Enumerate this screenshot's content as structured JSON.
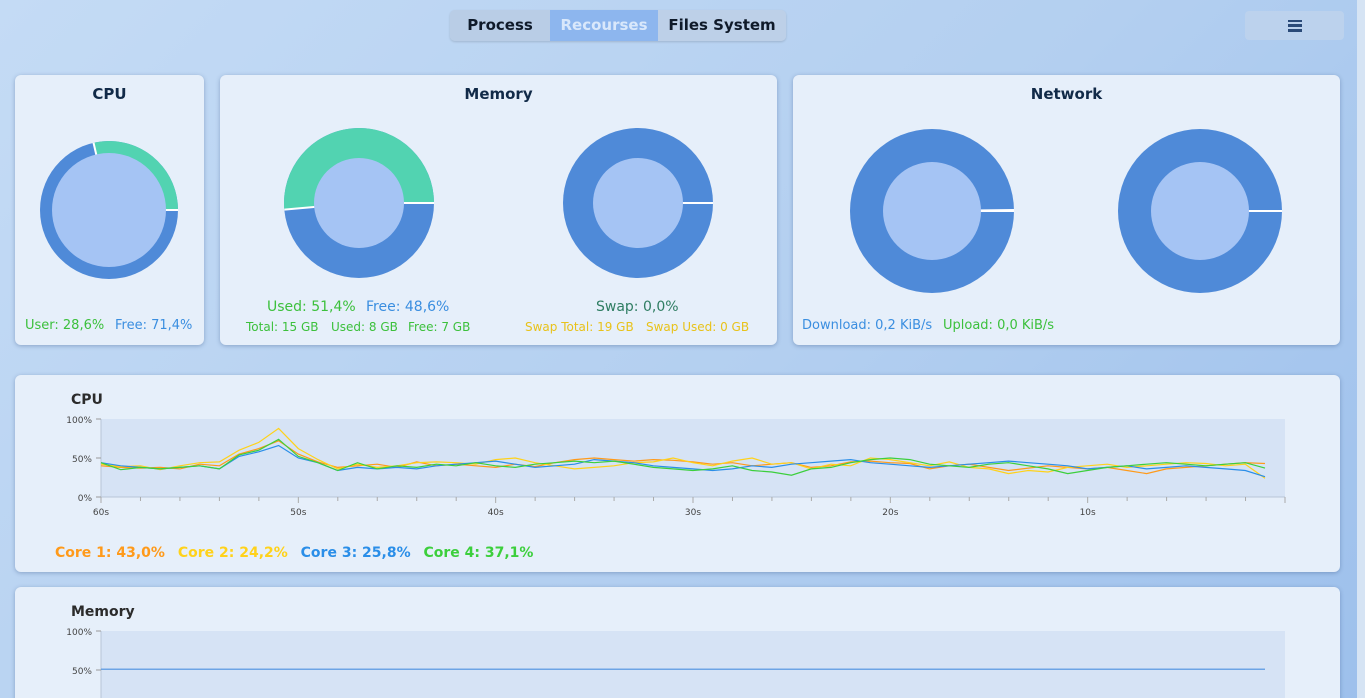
{
  "tabs": [
    {
      "label": "Process"
    },
    {
      "label": "Recourses"
    },
    {
      "label": "Files System"
    }
  ],
  "menu_icon": "hamburger-menu-icon",
  "colors": {
    "ring_dark": "#4f8ad8",
    "ring_teal": "#52d3b1",
    "inner": "#a5c4f4",
    "core1": "#ff9a1a",
    "core2": "#ffd21a",
    "core3": "#2a8ee8",
    "core4": "#3ccf3c",
    "memline": "#4a90e0"
  },
  "cpu_card": {
    "title": "CPU",
    "user": "User: 28,6%",
    "free": "Free: 71,4%",
    "used_fraction": 0.286
  },
  "memory_card": {
    "title": "Memory",
    "used": "Used: 51,4%",
    "free": "Free: 48,6%",
    "total": "Total: 15 GB",
    "used_gb": "Used: 8 GB",
    "free_gb": "Free: 7 GB",
    "used_fraction": 0.514,
    "swap": "Swap: 0,0%",
    "swap_total": "Swap Total: 19 GB",
    "swap_used": "Swap Used: 0 GB",
    "swap_fraction": 0.0
  },
  "network_card": {
    "title": "Network",
    "download": "Download: 0,2 KiB/s",
    "upload": "Upload: 0,0 KiB/s",
    "download_fraction": 0.002,
    "upload_fraction": 0.0
  },
  "cpu_chart": {
    "title": "CPU",
    "y_ticks": [
      "100%",
      "50%",
      "0%"
    ],
    "x_ticks": [
      "60s",
      "50s",
      "40s",
      "30s",
      "20s",
      "10s"
    ],
    "legend": {
      "core1": "Core 1: 43,0%",
      "core2": "Core 2: 24,2%",
      "core3": "Core 3: 25,8%",
      "core4": "Core 4: 37,1%"
    }
  },
  "memory_chart": {
    "title": "Memory",
    "y_ticks": [
      "100%",
      "50%"
    ]
  },
  "chart_data": [
    {
      "type": "line",
      "title": "CPU",
      "ylim": [
        0,
        100
      ],
      "x": [
        60,
        59,
        58,
        57,
        56,
        55,
        54,
        53,
        52,
        51,
        50,
        49,
        48,
        47,
        46,
        45,
        44,
        43,
        42,
        41,
        40,
        39,
        38,
        37,
        36,
        35,
        34,
        33,
        32,
        31,
        30,
        29,
        28,
        27,
        26,
        25,
        24,
        23,
        22,
        21,
        20,
        19,
        18,
        17,
        16,
        15,
        14,
        13,
        12,
        11,
        10,
        9,
        8,
        7,
        6,
        5,
        4,
        3,
        2,
        1
      ],
      "series": [
        {
          "name": "Core 1",
          "values": [
            40,
            38,
            37,
            38,
            36,
            42,
            40,
            55,
            62,
            72,
            55,
            45,
            38,
            40,
            42,
            38,
            45,
            40,
            42,
            40,
            38,
            42,
            39,
            44,
            48,
            50,
            48,
            46,
            48,
            47,
            45,
            42,
            44,
            40,
            42,
            44,
            38,
            40,
            45,
            46,
            44,
            43,
            36,
            40,
            42,
            38,
            34,
            37,
            40,
            38,
            36,
            38,
            34,
            30,
            36,
            38,
            40,
            42,
            44,
            43
          ]
        },
        {
          "name": "Core 2",
          "values": [
            42,
            39,
            40,
            35,
            40,
            44,
            45,
            60,
            70,
            88,
            62,
            48,
            36,
            42,
            38,
            40,
            44,
            45,
            44,
            42,
            48,
            50,
            44,
            40,
            36,
            38,
            40,
            44,
            45,
            50,
            44,
            40,
            46,
            50,
            42,
            44,
            36,
            42,
            40,
            50,
            48,
            44,
            40,
            45,
            38,
            36,
            30,
            34,
            32,
            38,
            40,
            42,
            38,
            40,
            42,
            44,
            43,
            40,
            42,
            24
          ]
        },
        {
          "name": "Core 3",
          "values": [
            44,
            40,
            38,
            36,
            38,
            40,
            36,
            52,
            58,
            66,
            50,
            44,
            34,
            38,
            36,
            38,
            36,
            40,
            42,
            44,
            46,
            42,
            38,
            40,
            42,
            48,
            46,
            44,
            40,
            38,
            36,
            34,
            36,
            40,
            38,
            42,
            44,
            46,
            48,
            44,
            42,
            40,
            38,
            40,
            42,
            44,
            46,
            44,
            42,
            40,
            36,
            38,
            40,
            36,
            38,
            40,
            38,
            36,
            34,
            26
          ]
        },
        {
          "name": "Core 4",
          "values": [
            44,
            35,
            38,
            36,
            38,
            40,
            36,
            54,
            60,
            74,
            52,
            44,
            34,
            44,
            36,
            40,
            38,
            42,
            40,
            44,
            40,
            38,
            42,
            44,
            46,
            44,
            46,
            42,
            38,
            36,
            34,
            36,
            40,
            34,
            32,
            28,
            36,
            38,
            44,
            48,
            50,
            48,
            42,
            40,
            38,
            42,
            44,
            40,
            36,
            30,
            34,
            38,
            40,
            42,
            44,
            42,
            40,
            42,
            44,
            37
          ]
        }
      ]
    },
    {
      "type": "line",
      "title": "Memory",
      "ylim": [
        0,
        100
      ],
      "series": [
        {
          "name": "Memory",
          "values": [
            51,
            51,
            51,
            51,
            51,
            51,
            51,
            51,
            51,
            51,
            51,
            51,
            51,
            51,
            51,
            51,
            51,
            51,
            51,
            51,
            51,
            51,
            51,
            51,
            51,
            51,
            51,
            51,
            51,
            51,
            51,
            51,
            51,
            51,
            51,
            51,
            51,
            51,
            51,
            51,
            51,
            51,
            51,
            51,
            51,
            51,
            51,
            51,
            51,
            51,
            51,
            51,
            51,
            51,
            51,
            51,
            51,
            51,
            51,
            51
          ]
        }
      ]
    }
  ]
}
